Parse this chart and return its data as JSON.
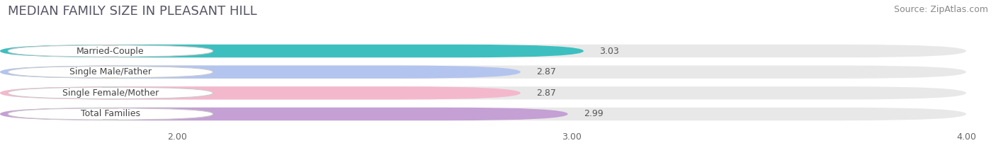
{
  "title": "MEDIAN FAMILY SIZE IN PLEASANT HILL",
  "source": "Source: ZipAtlas.com",
  "categories": [
    "Married-Couple",
    "Single Male/Father",
    "Single Female/Mother",
    "Total Families"
  ],
  "values": [
    3.03,
    2.87,
    2.87,
    2.99
  ],
  "bar_colors": [
    "#3dbfbf",
    "#b3c4ee",
    "#f4b8cc",
    "#c4a0d4"
  ],
  "label_accent_colors": [
    "#3dbfbf",
    "#b3c4ee",
    "#f4b8cc",
    "#c4a0d4"
  ],
  "xlim": [
    2.0,
    4.0
  ],
  "xstart": 1.55,
  "xticks": [
    2.0,
    3.0,
    4.0
  ],
  "xtick_labels": [
    "2.00",
    "3.00",
    "4.00"
  ],
  "bar_height": 0.62,
  "background_color": "#ffffff",
  "bar_bg_color": "#e8e8e8",
  "title_fontsize": 13,
  "source_fontsize": 9,
  "label_fontsize": 9,
  "value_fontsize": 9
}
